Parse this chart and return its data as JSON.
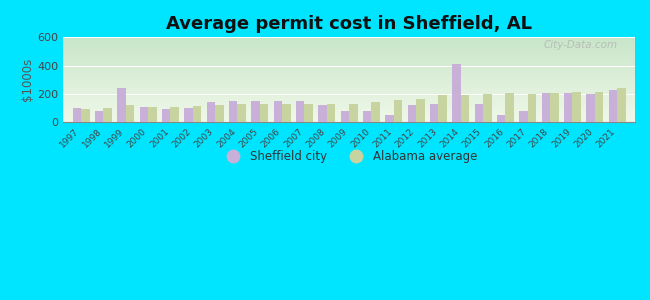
{
  "title": "Average permit cost in Sheffield, AL",
  "ylabel": "$1000s",
  "years": [
    1997,
    1998,
    1999,
    2000,
    2001,
    2002,
    2003,
    2004,
    2005,
    2006,
    2007,
    2008,
    2009,
    2010,
    2011,
    2012,
    2013,
    2014,
    2015,
    2016,
    2017,
    2018,
    2019,
    2020,
    2021
  ],
  "sheffield": [
    100,
    80,
    240,
    105,
    95,
    100,
    140,
    150,
    150,
    150,
    150,
    120,
    80,
    80,
    55,
    120,
    130,
    415,
    130,
    55,
    80,
    205,
    205,
    200,
    225
  ],
  "alabama": [
    95,
    100,
    120,
    110,
    110,
    115,
    120,
    130,
    130,
    130,
    130,
    130,
    130,
    145,
    160,
    165,
    190,
    195,
    200,
    205,
    200,
    210,
    215,
    215,
    240
  ],
  "sheffield_color": "#c9b0d8",
  "alabama_color": "#c8d4a0",
  "outer_bg": "#00e5ff",
  "ylim": [
    0,
    600
  ],
  "yticks": [
    0,
    200,
    400,
    600
  ],
  "watermark": "City-Data.com",
  "title_fontsize": 13,
  "legend_sheffield": "Sheffield city",
  "legend_alabama": "Alabama average",
  "bg_gradient_top": "#c8e6c9",
  "bg_gradient_bottom": "#f1f8e9"
}
